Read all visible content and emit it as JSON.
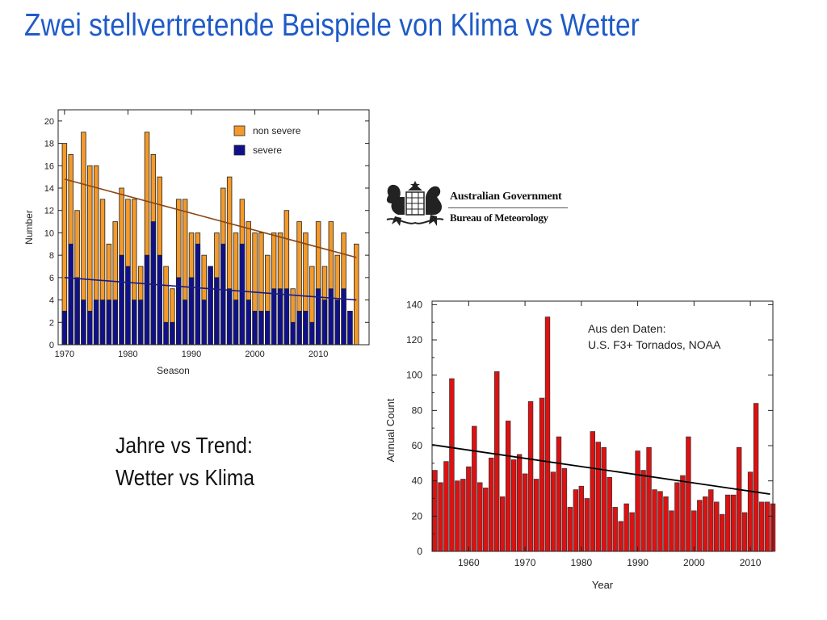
{
  "slide": {
    "title": "Zwei stellvertretende Beispiele von Klima vs Wetter"
  },
  "caption": {
    "line1": "Jahre vs Trend:",
    "line2": "Wetter vs Klima"
  },
  "logo": {
    "line1": "Australian Government",
    "line2": "Bureau of Meteorology",
    "icon": "coat-of-arms-icon"
  },
  "colors": {
    "title": "#1f5bc8",
    "non_severe": "#f39a2b",
    "severe": "#10108c",
    "trend_non_severe": "#8b4513",
    "trend_severe": "#1a1a8a",
    "tornado_bar": "#dd1111",
    "tornado_trend": "#000000"
  },
  "chart_data": [
    {
      "type": "bar",
      "stacked": "overlay",
      "xlabel": "Season",
      "ylabel": "Number",
      "xlim": [
        1969,
        2018
      ],
      "ylim": [
        0,
        21
      ],
      "xticks": [
        1970,
        1980,
        1990,
        2000,
        2010
      ],
      "yticks": [
        0,
        2,
        4,
        6,
        8,
        10,
        12,
        14,
        16,
        18,
        20
      ],
      "legend_position": "top-right",
      "x": [
        1970,
        1971,
        1972,
        1973,
        1974,
        1975,
        1976,
        1977,
        1978,
        1979,
        1980,
        1981,
        1982,
        1983,
        1984,
        1985,
        1986,
        1987,
        1988,
        1989,
        1990,
        1991,
        1992,
        1993,
        1994,
        1995,
        1996,
        1997,
        1998,
        1999,
        2000,
        2001,
        2002,
        2003,
        2004,
        2005,
        2006,
        2007,
        2008,
        2009,
        2010,
        2011,
        2012,
        2013,
        2014,
        2015,
        2016
      ],
      "series": [
        {
          "name": "non severe",
          "values": [
            18,
            17,
            12,
            19,
            16,
            16,
            13,
            9,
            11,
            14,
            13,
            13,
            7,
            19,
            17,
            15,
            7,
            5,
            13,
            13,
            10,
            10,
            8,
            7,
            10,
            14,
            15,
            10,
            13,
            11,
            10,
            10,
            8,
            10,
            10,
            12,
            5,
            11,
            10,
            7,
            11,
            7,
            11,
            8,
            10,
            3,
            9
          ]
        },
        {
          "name": "severe",
          "values": [
            3,
            9,
            6,
            4,
            3,
            4,
            4,
            4,
            4,
            8,
            7,
            4,
            4,
            8,
            11,
            8,
            2,
            2,
            6,
            4,
            6,
            9,
            4,
            7,
            6,
            9,
            5,
            4,
            9,
            4,
            3,
            3,
            3,
            5,
            5,
            5,
            2,
            3,
            3,
            2,
            5,
            4,
            5,
            4,
            5,
            3,
            0
          ]
        }
      ],
      "trendlines": [
        {
          "name": "non severe trend",
          "x": [
            1970,
            2016
          ],
          "y": [
            14.8,
            7.8
          ]
        },
        {
          "name": "severe trend",
          "x": [
            1970,
            2016
          ],
          "y": [
            6.0,
            4.0
          ]
        }
      ]
    },
    {
      "type": "bar",
      "xlabel": "Year",
      "ylabel": "Annual Count",
      "xlim": [
        1954,
        2014.5
      ],
      "ylim": [
        0,
        142
      ],
      "xticks": [
        1960,
        1970,
        1980,
        1990,
        2000,
        2010
      ],
      "yticks": [
        0,
        20,
        40,
        60,
        80,
        100,
        120,
        140
      ],
      "annotation": [
        "Aus den Daten:",
        "U.S. F3+ Tornados, NOAA"
      ],
      "x": [
        1954,
        1955,
        1956,
        1957,
        1958,
        1959,
        1960,
        1961,
        1962,
        1963,
        1964,
        1965,
        1966,
        1967,
        1968,
        1969,
        1970,
        1971,
        1972,
        1973,
        1974,
        1975,
        1976,
        1977,
        1978,
        1979,
        1980,
        1981,
        1982,
        1983,
        1984,
        1985,
        1986,
        1987,
        1988,
        1989,
        1990,
        1991,
        1992,
        1993,
        1994,
        1995,
        1996,
        1997,
        1998,
        1999,
        2000,
        2001,
        2002,
        2003,
        2004,
        2005,
        2006,
        2007,
        2008,
        2009,
        2010,
        2011,
        2012,
        2013,
        2014
      ],
      "series": [
        {
          "name": "",
          "values": [
            46,
            39,
            51,
            98,
            40,
            41,
            48,
            71,
            39,
            36,
            53,
            102,
            31,
            74,
            52,
            55,
            44,
            85,
            41,
            87,
            133,
            45,
            65,
            47,
            25,
            35,
            37,
            30,
            68,
            62,
            59,
            42,
            25,
            17,
            27,
            22,
            57,
            46,
            59,
            35,
            34,
            31,
            23,
            39,
            43,
            65,
            23,
            29,
            31,
            35,
            28,
            21,
            32,
            32,
            59,
            22,
            45,
            84,
            28,
            28,
            27
          ]
        }
      ],
      "trendlines": [
        {
          "name": "trend",
          "x": [
            1954,
            2014
          ],
          "y": [
            60.5,
            32.5
          ]
        }
      ]
    }
  ]
}
